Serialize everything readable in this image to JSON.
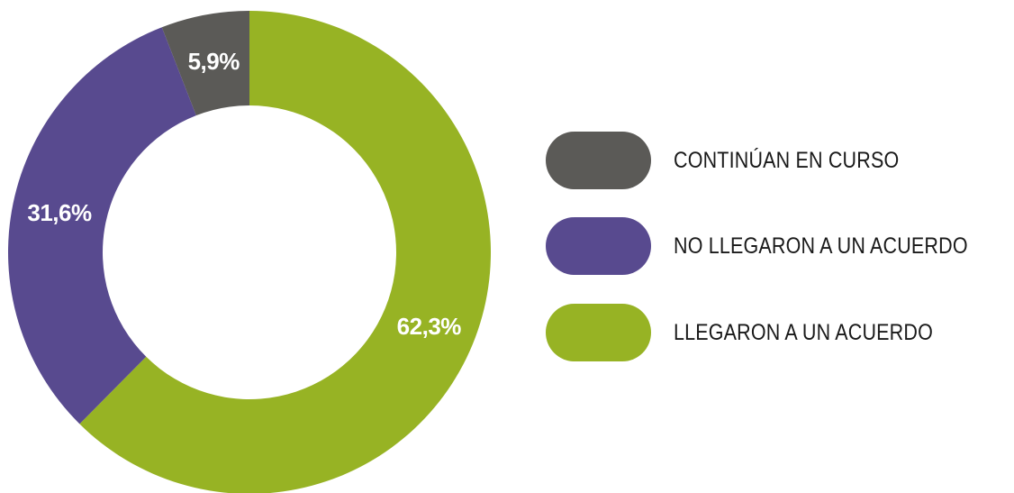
{
  "chart_data": {
    "type": "pie",
    "variant": "donut",
    "title": "",
    "categories": [
      "CONTINÚAN EN CURSO",
      "NO LLEGARON A UN ACUERDO",
      "LLEGARON A UN ACUERDO"
    ],
    "slices": [
      {
        "name": "LLEGARON A UN ACUERDO",
        "value": 62.3,
        "label": "62,3%",
        "color": "#97b324"
      },
      {
        "name": "NO LLEGARON A UN ACUERDO",
        "value": 31.6,
        "label": "31,6%",
        "color": "#584a8f"
      },
      {
        "name": "CONTINÚAN EN CURSO",
        "value": 5.9,
        "label": "5,9%",
        "color": "#5b5a57"
      }
    ],
    "start": "top, clockwise",
    "legend_placement": "right"
  },
  "legend": {
    "items": [
      {
        "label": "CONTINÚAN EN CURSO",
        "color": "#5b5a57"
      },
      {
        "label": "NO LLEGARON A UN ACUERDO",
        "color": "#584a8f"
      },
      {
        "label": "LLEGARON A UN ACUERDO",
        "color": "#97b324"
      }
    ]
  }
}
